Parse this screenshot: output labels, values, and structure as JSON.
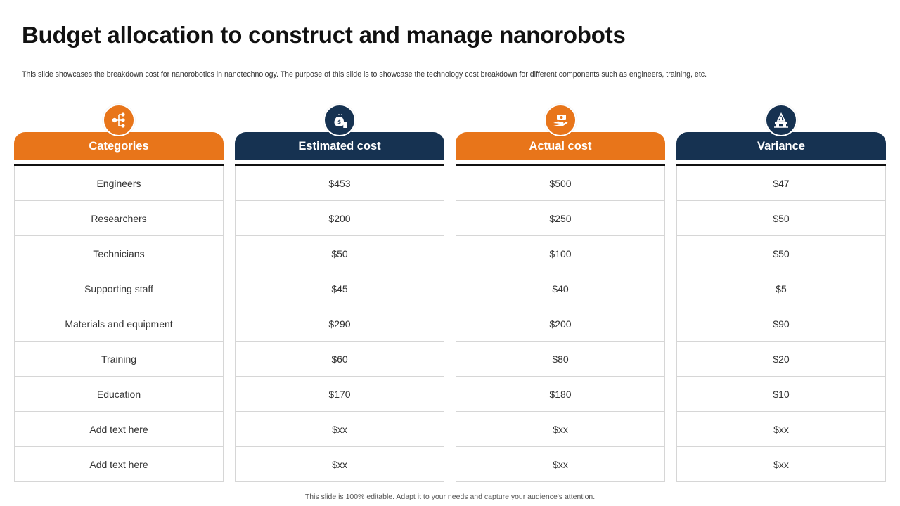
{
  "title": "Budget allocation to construct and manage nanorobots",
  "subtitle": "This slide showcases the breakdown cost for nanorobotics in nanotechnology. The purpose of this slide is to showcase the technology cost breakdown for different components such as engineers, training, etc.",
  "colors": {
    "orange": "#E8751A",
    "navy": "#163251"
  },
  "columns": [
    {
      "header": "Categories",
      "icon": "hierarchy-icon",
      "color": "#E8751A",
      "rows": [
        "Engineers",
        "Researchers",
        "Technicians",
        "Supporting staff",
        "Materials and equipment",
        "Training",
        "Education",
        "Add text here",
        "Add text here"
      ]
    },
    {
      "header": "Estimated cost",
      "icon": "money-bag-coins-icon",
      "color": "#163251",
      "rows": [
        "$453",
        "$200",
        "$50",
        "$45",
        "$290",
        "$60",
        "$170",
        "$xx",
        "$xx"
      ]
    },
    {
      "header": "Actual cost",
      "icon": "hand-cash-icon",
      "color": "#E8751A",
      "rows": [
        "$500",
        "$250",
        "$100",
        "$40",
        "$200",
        "$80",
        "$180",
        "$xx",
        "$xx"
      ]
    },
    {
      "header": "Variance",
      "icon": "construction-icon",
      "color": "#163251",
      "rows": [
        "$47",
        "$50",
        "$50",
        "$5",
        "$90",
        "$20",
        "$10",
        "$xx",
        "$xx"
      ]
    }
  ],
  "footer": "This slide is 100% editable. Adapt it to your needs and capture your audience's attention."
}
